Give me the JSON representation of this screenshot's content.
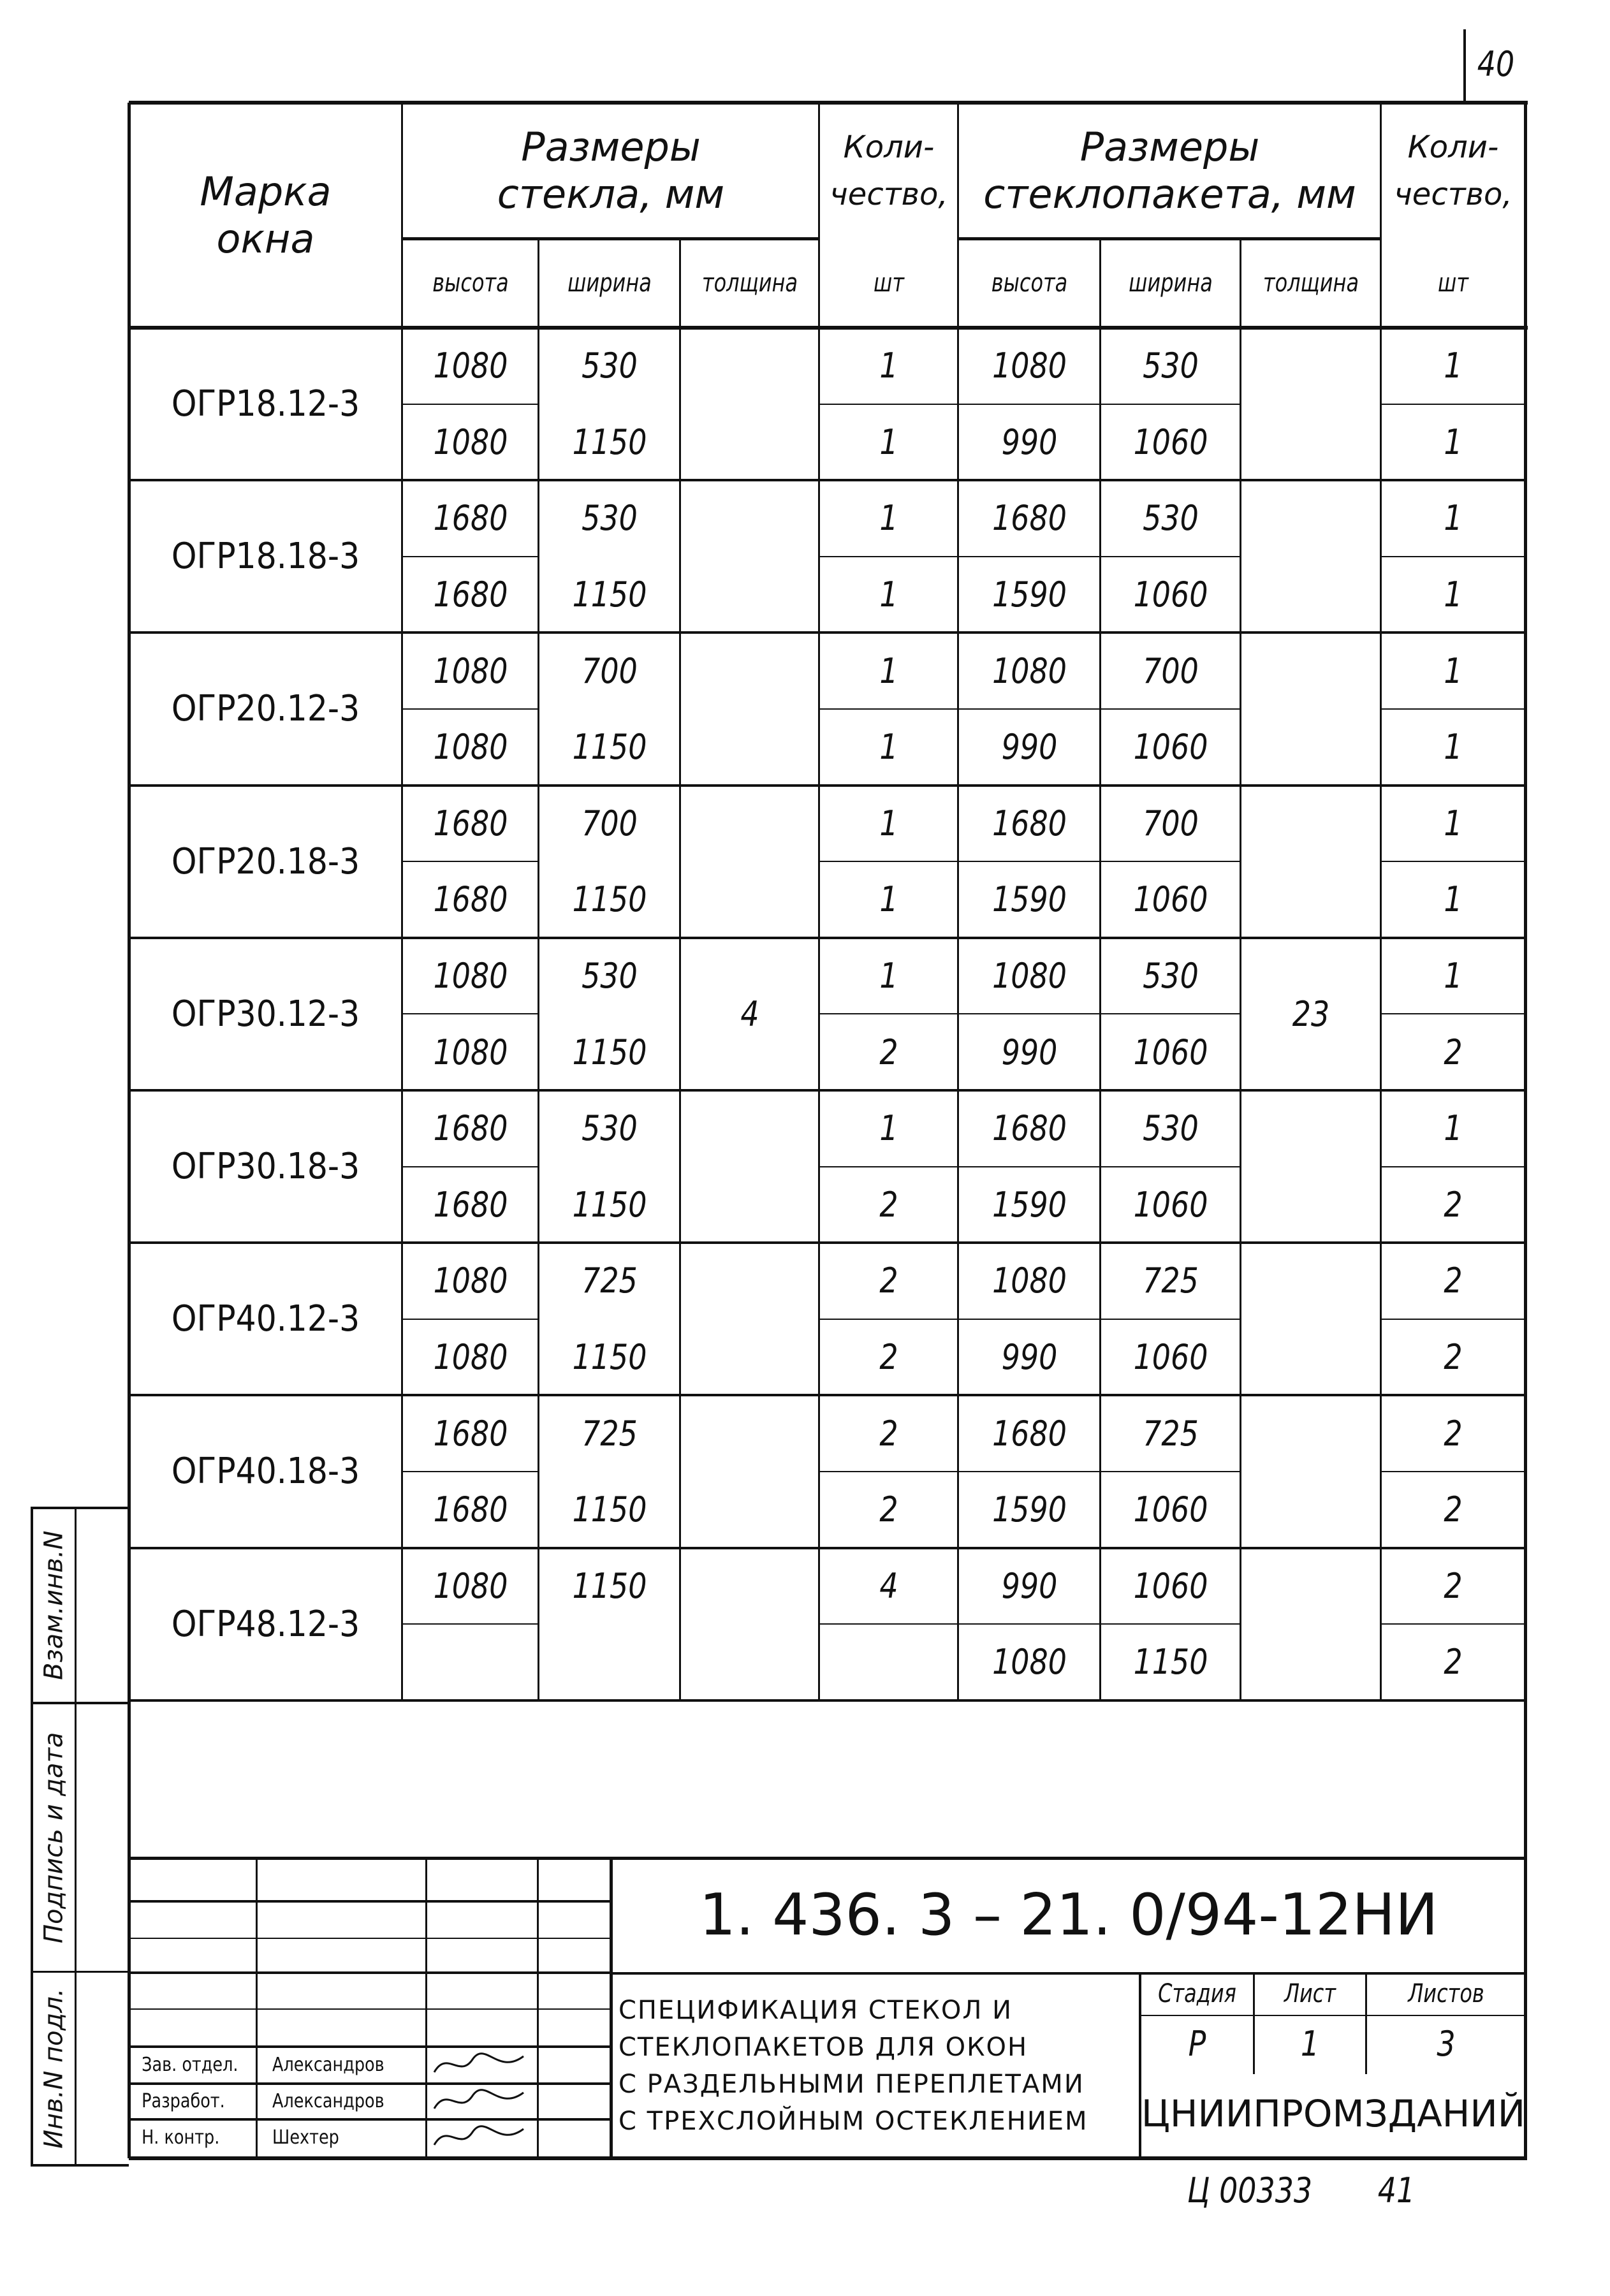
{
  "page_number": "40",
  "header": {
    "mark": "Марка\nокна",
    "glass_sizes": "Размеры\nстекла, мм",
    "glass_qty": "Коли-\nчество,",
    "glass_qty_unit": "шт",
    "packet_sizes": "Размеры\nстеклопакета, мм",
    "packet_qty": "Коли-\nчество,",
    "packet_qty_unit": "шт",
    "height": "высота",
    "width": "ширина",
    "thickness": "толщина"
  },
  "glass_thickness": "4",
  "packet_thickness": "23",
  "windows": [
    {
      "mark": "ОГР18.12-3",
      "rows": [
        [
          "1080",
          "530",
          "1",
          "1080",
          "530",
          "1"
        ],
        [
          "1080",
          "1150",
          "1",
          "990",
          "1060",
          "1"
        ]
      ]
    },
    {
      "mark": "ОГР18.18-3",
      "rows": [
        [
          "1680",
          "530",
          "1",
          "1680",
          "530",
          "1"
        ],
        [
          "1680",
          "1150",
          "1",
          "1590",
          "1060",
          "1"
        ]
      ]
    },
    {
      "mark": "ОГР20.12-3",
      "rows": [
        [
          "1080",
          "700",
          "1",
          "1080",
          "700",
          "1"
        ],
        [
          "1080",
          "1150",
          "1",
          "990",
          "1060",
          "1"
        ]
      ]
    },
    {
      "mark": "ОГР20.18-3",
      "rows": [
        [
          "1680",
          "700",
          "1",
          "1680",
          "700",
          "1"
        ],
        [
          "1680",
          "1150",
          "1",
          "1590",
          "1060",
          "1"
        ]
      ]
    },
    {
      "mark": "ОГР30.12-3",
      "rows": [
        [
          "1080",
          "530",
          "1",
          "1080",
          "530",
          "1"
        ],
        [
          "1080",
          "1150",
          "2",
          "990",
          "1060",
          "2"
        ]
      ]
    },
    {
      "mark": "ОГР30.18-3",
      "rows": [
        [
          "1680",
          "530",
          "1",
          "1680",
          "530",
          "1"
        ],
        [
          "1680",
          "1150",
          "2",
          "1590",
          "1060",
          "2"
        ]
      ]
    },
    {
      "mark": "ОГР40.12-3",
      "rows": [
        [
          "1080",
          "725",
          "2",
          "1080",
          "725",
          "2"
        ],
        [
          "1080",
          "1150",
          "2",
          "990",
          "1060",
          "2"
        ]
      ]
    },
    {
      "mark": "ОГР40.18-3",
      "rows": [
        [
          "1680",
          "725",
          "2",
          "1680",
          "725",
          "2"
        ],
        [
          "1680",
          "1150",
          "2",
          "1590",
          "1060",
          "2"
        ]
      ]
    },
    {
      "mark": "ОГР48.12-3",
      "rows": [
        [
          "1080",
          "1150",
          "4",
          "990",
          "1060",
          "2"
        ],
        [
          "",
          "",
          "",
          "1080",
          "1150",
          "2"
        ]
      ]
    }
  ],
  "side_strip": {
    "replacement_inv": "Взам.инв.N",
    "signature_date": "Подпись и дата",
    "orig_inv": "Инв.N подл."
  },
  "title_block": {
    "code": "1. 436. 3 – 21. 0/94-12НИ",
    "description": "Спецификация стекол и\nстеклопакетов для окон\nс раздельными переплетами\nс трехслойным остеклением",
    "stage_label": "Стадия",
    "sheet_label": "Лист",
    "sheets_label": "Листов",
    "stage": "Р",
    "sheet": "1",
    "sheets": "3",
    "organization": "ЦНИИПРОМЗДАНИЙ",
    "signers": [
      {
        "role": "Зав. отдел.",
        "name": "Александров"
      },
      {
        "role": "Разработ.",
        "name": "Александров"
      },
      {
        "role": "Н. контр.",
        "name": "Шехтер"
      }
    ]
  },
  "footer": {
    "archive_code": "Ц 00333",
    "archive_sheet": "41"
  }
}
